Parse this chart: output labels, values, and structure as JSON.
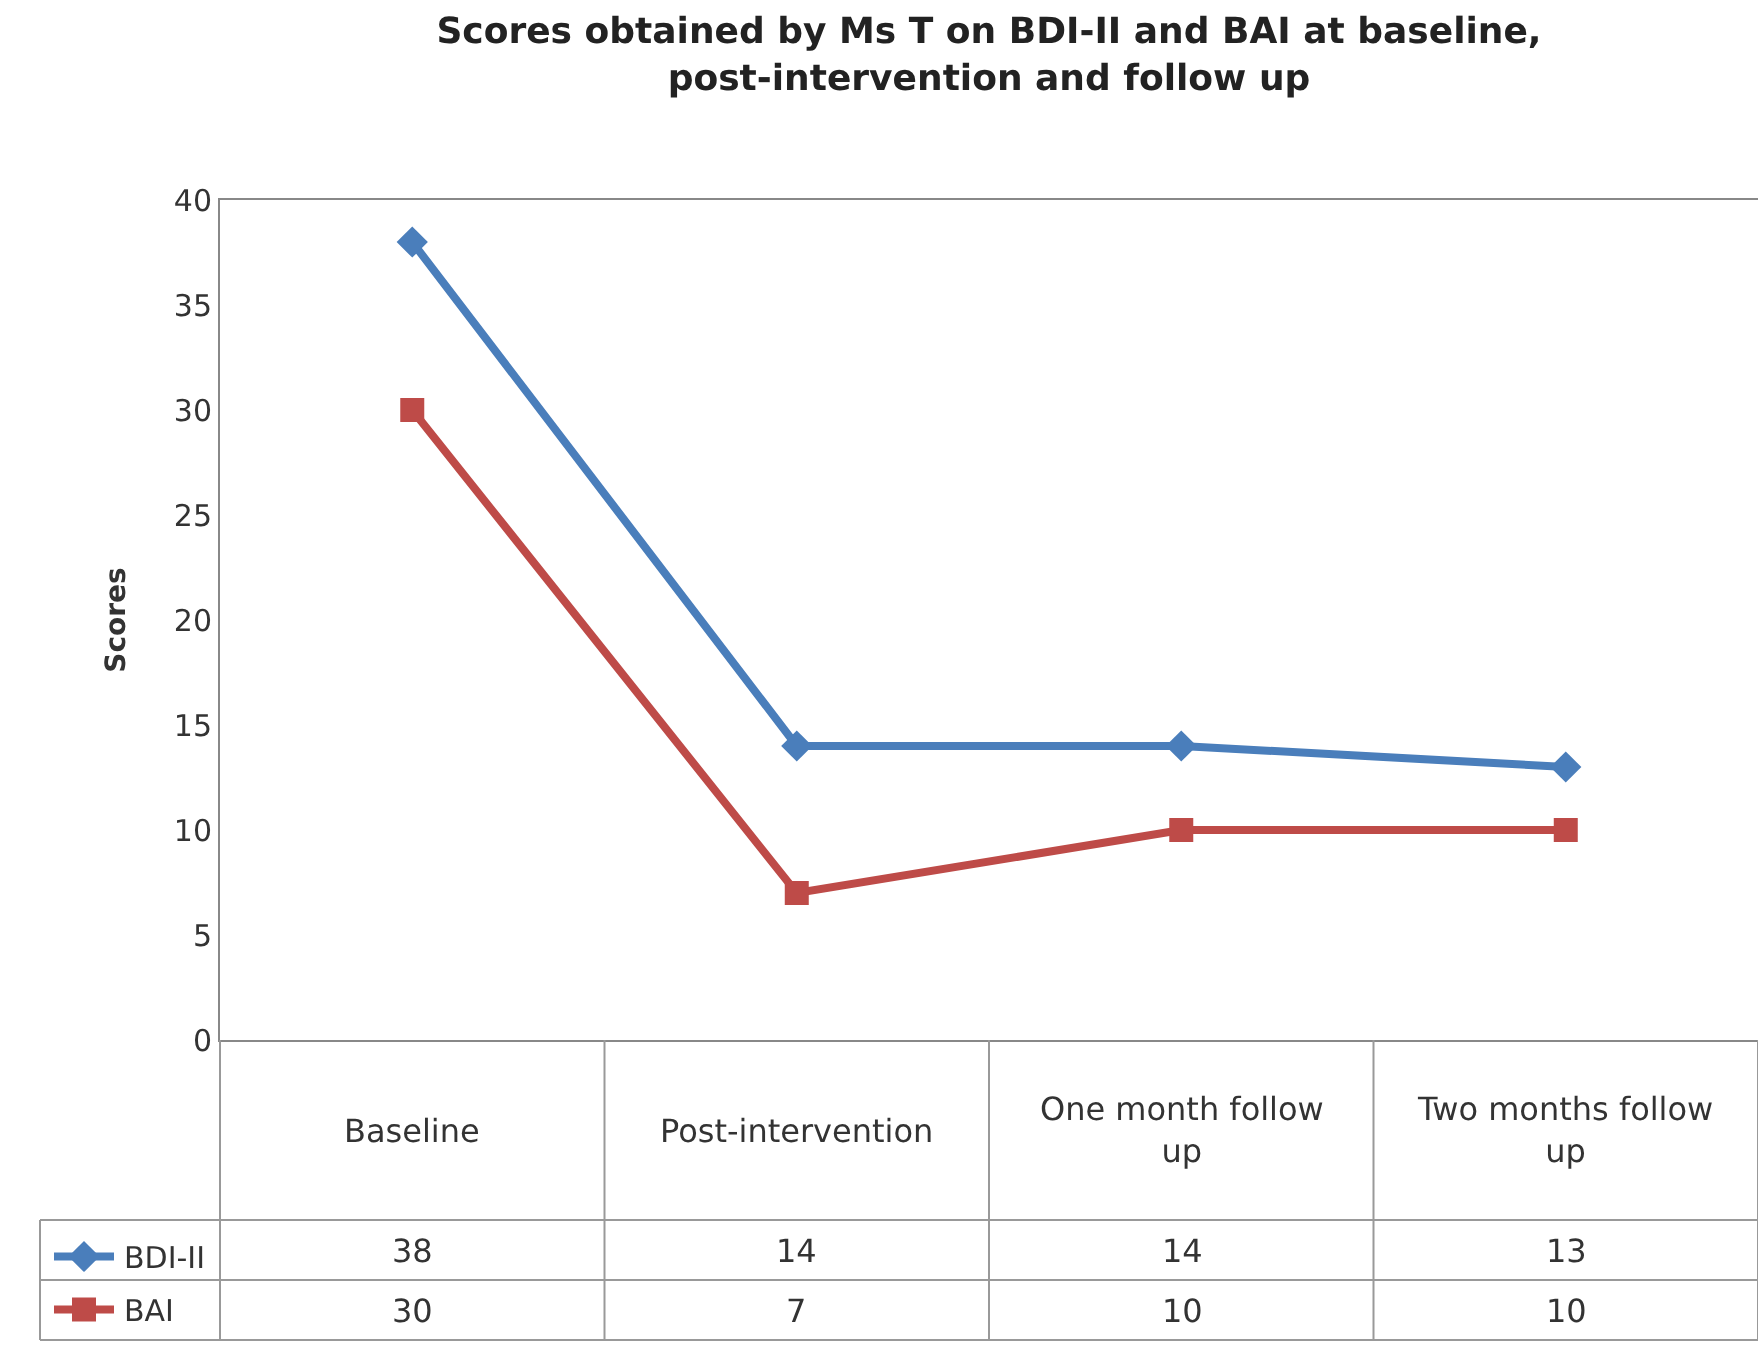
{
  "chart_data": {
    "type": "line",
    "title": "Scores obtained by Ms T on BDI-II and BAI at baseline, post-intervention and follow up",
    "ylabel": "Scores",
    "categories": [
      "Baseline",
      "Post-intervention",
      "One month follow up",
      "Two months follow up"
    ],
    "series": [
      {
        "name": "BDI-II",
        "color": "#4a7ebb",
        "marker": "diamond",
        "values": [
          38,
          14,
          14,
          13
        ]
      },
      {
        "name": "BAI",
        "color": "#be4b48",
        "marker": "square",
        "values": [
          30,
          7,
          10,
          10
        ]
      }
    ],
    "ylim": [
      0,
      40
    ],
    "yticks": [
      0,
      5,
      10,
      15,
      20,
      25,
      30,
      35,
      40
    ],
    "legend": "bottom left",
    "data_labels": true,
    "line_style": "solid"
  }
}
